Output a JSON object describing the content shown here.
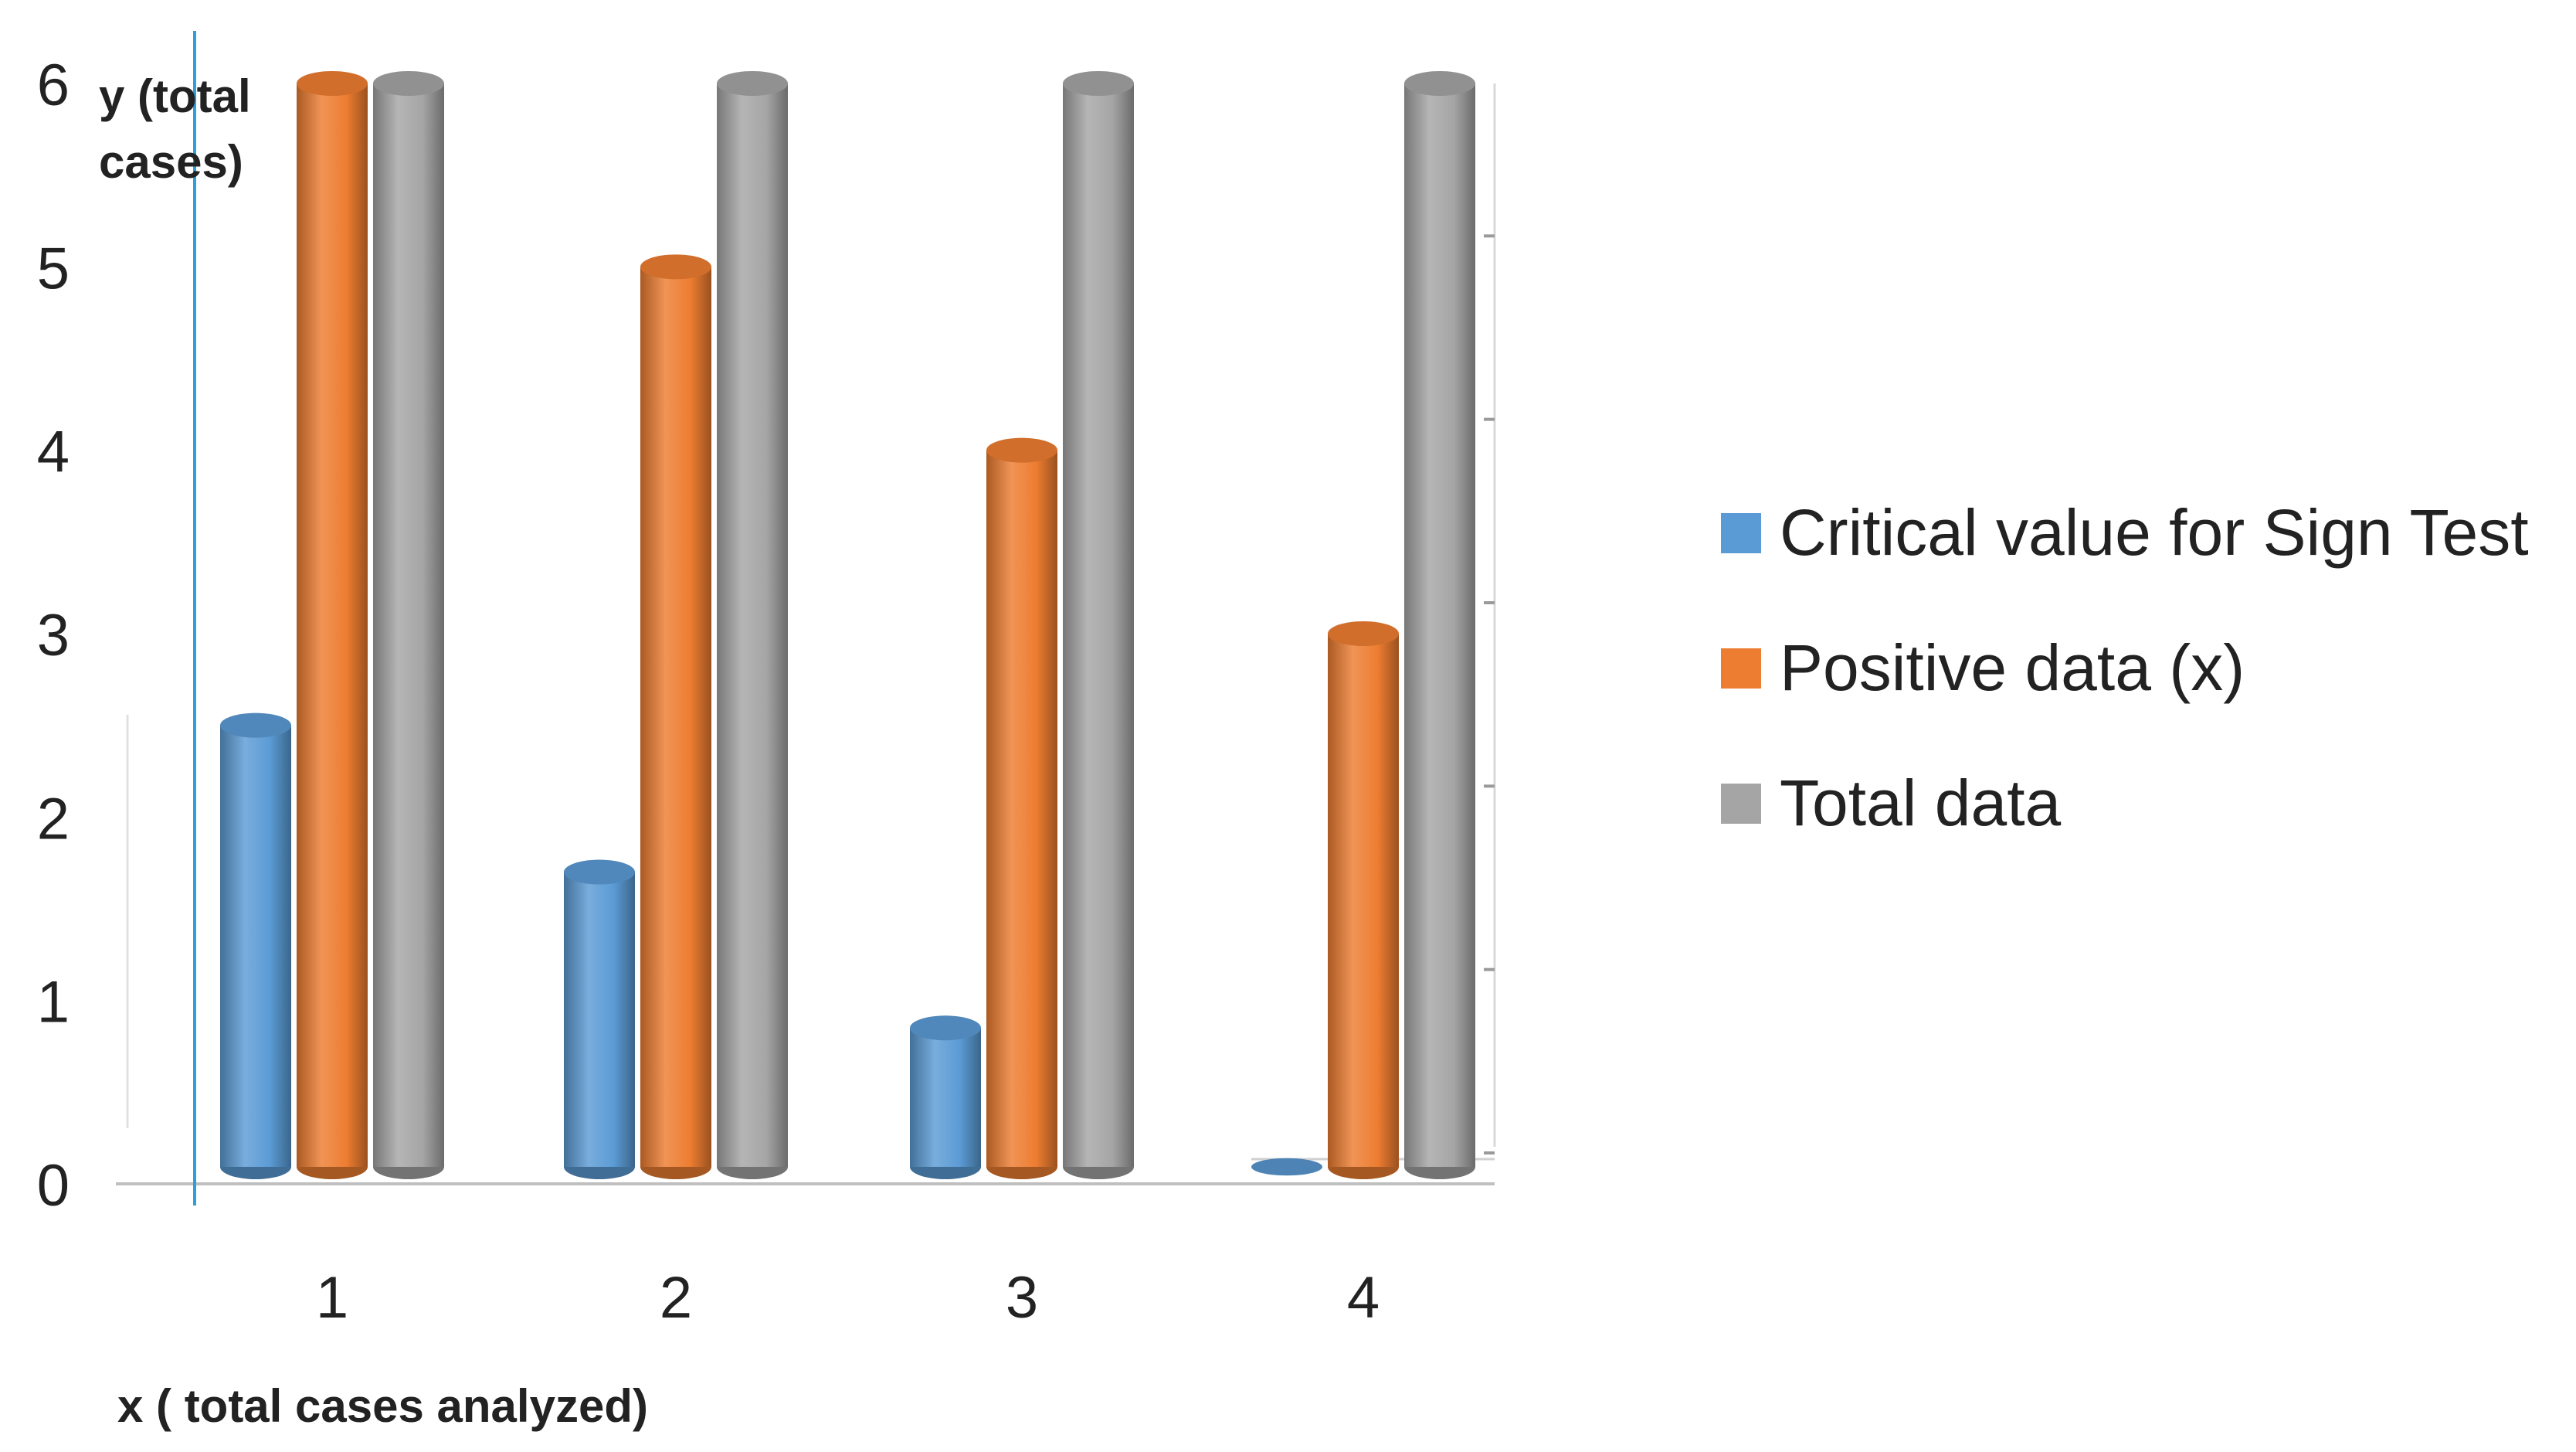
{
  "chart_data": {
    "type": "bar",
    "title": "",
    "xlabel": "x ( total cases analyzed)",
    "ylabel_lines": [
      "y (total",
      "cases)"
    ],
    "categories": [
      "1",
      "2",
      "3",
      "4"
    ],
    "ylim": [
      0,
      6
    ],
    "yticks": [
      "0",
      "1",
      "2",
      "3",
      "4",
      "5",
      "6"
    ],
    "legend_position": "right",
    "series": [
      {
        "name": "Critical value for Sign Test",
        "color": "#5b9bd5",
        "values": [
          2.5,
          1.7,
          0.85,
          0
        ]
      },
      {
        "name": "Positive data (x)",
        "color": "#ed7d31",
        "values": [
          6,
          5,
          4,
          3
        ]
      },
      {
        "name": "Total data",
        "color": "#a5a5a5",
        "values": [
          6,
          6,
          6,
          6
        ]
      }
    ]
  }
}
